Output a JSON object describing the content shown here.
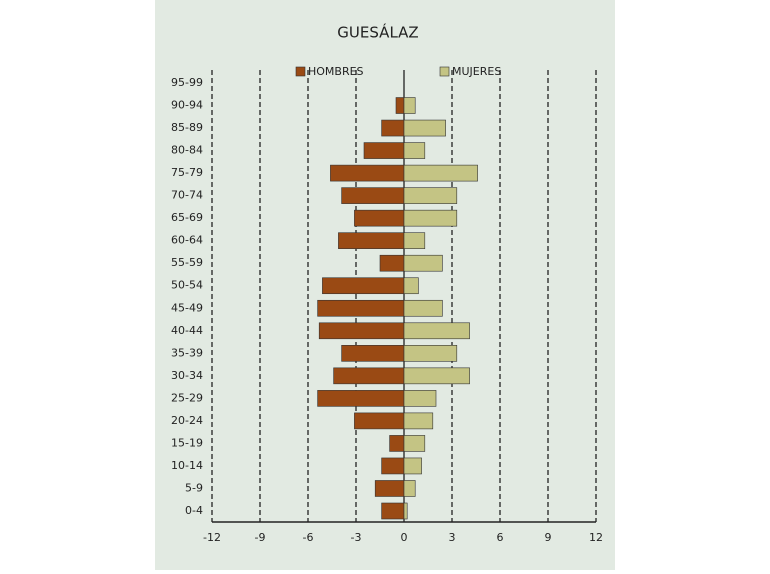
{
  "chart_data": {
    "type": "pyramid",
    "title": "GUESÁLAZ",
    "categories": [
      "95-99",
      "90-94",
      "85-89",
      "80-84",
      "75-79",
      "70-74",
      "65-69",
      "60-64",
      "55-59",
      "50-54",
      "45-49",
      "40-44",
      "35-39",
      "30-34",
      "25-29",
      "20-24",
      "15-19",
      "10-14",
      "5-9",
      "0-4"
    ],
    "series": [
      {
        "name": "HOMBRES",
        "color": "#9a4a14",
        "values": [
          0,
          -0.5,
          -1.4,
          -2.5,
          -4.6,
          -3.9,
          -3.1,
          -4.1,
          -1.5,
          -5.1,
          -5.4,
          -5.3,
          -3.9,
          -4.4,
          -5.4,
          -3.1,
          -0.9,
          -1.4,
          -1.8,
          -1.4
        ]
      },
      {
        "name": "MUJERES",
        "color": "#c4c484",
        "values": [
          0,
          0.7,
          2.6,
          1.3,
          4.6,
          3.3,
          3.3,
          1.3,
          2.4,
          0.9,
          2.4,
          4.1,
          3.3,
          4.1,
          2.0,
          1.8,
          1.3,
          1.1,
          0.7,
          0.2
        ]
      }
    ],
    "xlim": [
      -12,
      12
    ],
    "xticks": [
      -12,
      -9,
      -6,
      -3,
      0,
      3,
      6,
      9,
      12
    ],
    "grid": true
  }
}
